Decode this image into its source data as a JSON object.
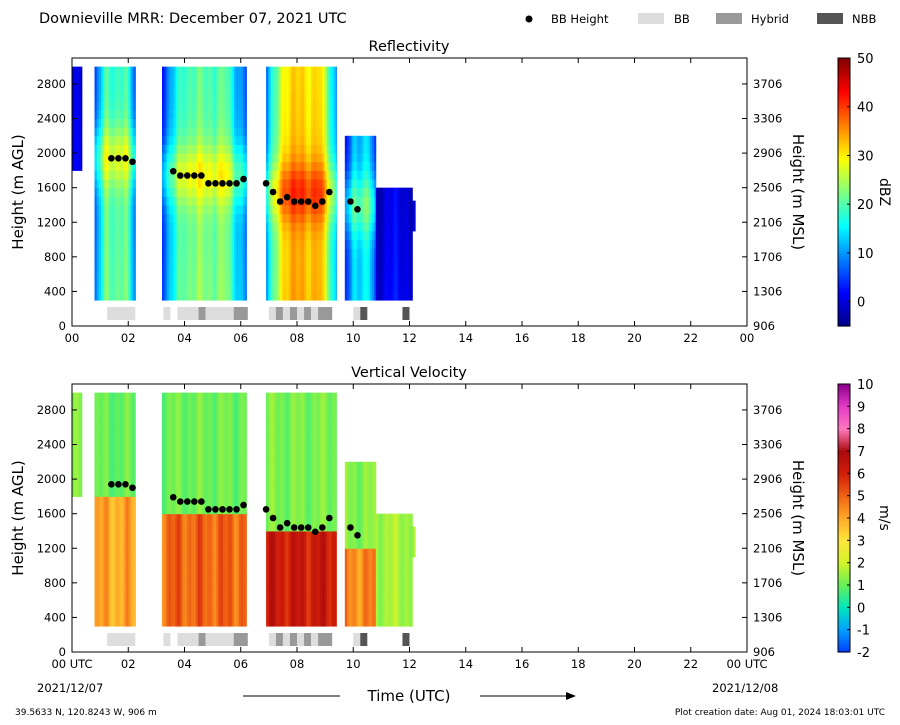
{
  "header": {
    "title": "Downieville MRR:  December 07, 2021 UTC",
    "legend": [
      {
        "label": "BB Height",
        "marker": "dot",
        "color": "#000000"
      },
      {
        "label": "BB",
        "marker": "box",
        "color": "#dddddd"
      },
      {
        "label": "Hybrid",
        "marker": "box",
        "color": "#999999"
      },
      {
        "label": "NBB",
        "marker": "box",
        "color": "#555555"
      }
    ]
  },
  "footer": {
    "location": "39.5633 N, 120.8243 W, 906 m",
    "creation": "Plot creation date: Aug 01, 2024 18:03:01 UTC",
    "date_left": "2021/12/07",
    "date_right": "2021/12/08",
    "xlabel": "Time (UTC)"
  },
  "chart_data": [
    {
      "type": "heatmap",
      "title": "Reflectivity",
      "ylabel": "Height (m AGL)",
      "ylabel_right": "Height (m MSL)",
      "xlim": [
        0,
        24
      ],
      "ylim": [
        0,
        3100
      ],
      "x_ticks": [
        "00",
        "02",
        "04",
        "06",
        "08",
        "10",
        "12",
        "14",
        "16",
        "18",
        "20",
        "22",
        "00"
      ],
      "y_ticks": [
        0,
        400,
        800,
        1200,
        1600,
        2000,
        2400,
        2800
      ],
      "y_ticks_right": [
        906,
        1306,
        1706,
        2106,
        2506,
        2906,
        3306,
        3706
      ],
      "colorbar": {
        "label": "dBZ",
        "min": -5,
        "max": 50,
        "ticks": [
          0,
          10,
          20,
          30,
          40,
          50
        ],
        "scale": "jet"
      },
      "echo_periods": [
        {
          "start": 0.0,
          "end": 0.35,
          "bottom": 1800,
          "top": 3000,
          "base": 2,
          "core": 0,
          "bbh": 0
        },
        {
          "start": 0.8,
          "end": 2.25,
          "bottom": 300,
          "top": 3000,
          "base": 8,
          "core": 14,
          "bbh": 1900
        },
        {
          "start": 3.2,
          "end": 6.2,
          "bottom": 300,
          "top": 3000,
          "base": 8,
          "core": 15,
          "bbh": 1700
        },
        {
          "start": 6.9,
          "end": 9.4,
          "bottom": 300,
          "top": 3000,
          "base": 12,
          "core": 22,
          "bbh": 1500
        },
        {
          "start": 9.7,
          "end": 10.8,
          "bottom": 300,
          "top": 2200,
          "base": 3,
          "core": 12,
          "bbh": 1350
        },
        {
          "start": 10.8,
          "end": 12.1,
          "bottom": 300,
          "top": 1600,
          "base": 0,
          "core": 2,
          "bbh": 0
        },
        {
          "start": 12.0,
          "end": 12.2,
          "bottom": 1100,
          "top": 1450,
          "base": 0,
          "core": 0,
          "bbh": 0
        }
      ],
      "bb_height": {
        "time": [
          1.4,
          1.65,
          1.9,
          2.15,
          3.6,
          3.85,
          4.1,
          4.35,
          4.6,
          4.85,
          5.1,
          5.35,
          5.6,
          5.85,
          6.1,
          6.9,
          7.15,
          7.4,
          7.65,
          7.9,
          8.15,
          8.4,
          8.65,
          8.9,
          9.15,
          9.9,
          10.15
        ],
        "height": [
          1940,
          1940,
          1940,
          1900,
          1790,
          1740,
          1740,
          1740,
          1740,
          1650,
          1650,
          1650,
          1650,
          1650,
          1700,
          1650,
          1550,
          1440,
          1490,
          1440,
          1440,
          1440,
          1390,
          1440,
          1550,
          1440,
          1350
        ]
      },
      "bb_type": [
        {
          "start": 1.25,
          "end": 2.25,
          "type": "BB"
        },
        {
          "start": 3.25,
          "end": 3.5,
          "type": "BB"
        },
        {
          "start": 3.75,
          "end": 4.5,
          "type": "BB"
        },
        {
          "start": 4.5,
          "end": 4.75,
          "type": "Hybrid"
        },
        {
          "start": 4.75,
          "end": 5.75,
          "type": "BB"
        },
        {
          "start": 5.75,
          "end": 6.25,
          "type": "Hybrid"
        },
        {
          "start": 7.0,
          "end": 7.25,
          "type": "BB"
        },
        {
          "start": 7.25,
          "end": 7.5,
          "type": "Hybrid"
        },
        {
          "start": 7.5,
          "end": 7.75,
          "type": "BB"
        },
        {
          "start": 7.75,
          "end": 8.0,
          "type": "Hybrid"
        },
        {
          "start": 8.0,
          "end": 8.25,
          "type": "BB"
        },
        {
          "start": 8.25,
          "end": 8.5,
          "type": "Hybrid"
        },
        {
          "start": 8.5,
          "end": 8.75,
          "type": "BB"
        },
        {
          "start": 8.75,
          "end": 9.25,
          "type": "Hybrid"
        },
        {
          "start": 10.0,
          "end": 10.25,
          "type": "BB"
        },
        {
          "start": 10.25,
          "end": 10.5,
          "type": "NBB"
        },
        {
          "start": 11.75,
          "end": 12.0,
          "type": "NBB"
        }
      ]
    },
    {
      "type": "heatmap",
      "title": "Vertical Velocity",
      "ylabel": "Height (m AGL)",
      "ylabel_right": "Height (m MSL)",
      "xlim": [
        0,
        24
      ],
      "ylim": [
        0,
        3100
      ],
      "x_ticks": [
        "00 UTC",
        "02",
        "04",
        "06",
        "08",
        "10",
        "12",
        "14",
        "16",
        "18",
        "20",
        "22",
        "00 UTC"
      ],
      "y_ticks": [
        0,
        400,
        800,
        1200,
        1600,
        2000,
        2400,
        2800
      ],
      "y_ticks_right": [
        906,
        1306,
        1706,
        2106,
        2506,
        2906,
        3306,
        3706
      ],
      "colorbar": {
        "label": "m/s",
        "min": -2,
        "max": 10,
        "ticks": [
          -2,
          -1,
          0,
          1,
          2,
          3,
          4,
          5,
          6,
          7,
          8,
          9,
          10
        ],
        "scale": "velocity"
      },
      "echo_periods": [
        {
          "start": 0.0,
          "end": 0.35,
          "bottom": 1800,
          "top": 3000,
          "below": 3.5,
          "above": 1.2
        },
        {
          "start": 0.8,
          "end": 2.25,
          "bottom": 300,
          "top": 3000,
          "below": 4.0,
          "above": 1.0
        },
        {
          "start": 3.2,
          "end": 6.2,
          "bottom": 300,
          "top": 3000,
          "below": 5.0,
          "above": 1.1
        },
        {
          "start": 6.9,
          "end": 9.4,
          "bottom": 300,
          "top": 3000,
          "below": 6.2,
          "above": 1.2
        },
        {
          "start": 9.7,
          "end": 10.8,
          "bottom": 300,
          "top": 2200,
          "below": 4.5,
          "above": 1.3
        },
        {
          "start": 10.8,
          "end": 12.1,
          "bottom": 300,
          "top": 1600,
          "below": 1.6,
          "above": 1.6
        },
        {
          "start": 12.0,
          "end": 12.2,
          "bottom": 1100,
          "top": 1450,
          "below": 1.5,
          "above": 1.5
        }
      ],
      "bb_height": {
        "time": [
          1.4,
          1.65,
          1.9,
          2.15,
          3.6,
          3.85,
          4.1,
          4.35,
          4.6,
          4.85,
          5.1,
          5.35,
          5.6,
          5.85,
          6.1,
          6.9,
          7.15,
          7.4,
          7.65,
          7.9,
          8.15,
          8.4,
          8.65,
          8.9,
          9.15,
          9.9,
          10.15
        ],
        "height": [
          1940,
          1940,
          1940,
          1900,
          1790,
          1740,
          1740,
          1740,
          1740,
          1650,
          1650,
          1650,
          1650,
          1650,
          1700,
          1650,
          1550,
          1440,
          1490,
          1440,
          1440,
          1440,
          1390,
          1440,
          1550,
          1440,
          1350
        ]
      },
      "bb_type": [
        {
          "start": 1.25,
          "end": 2.25,
          "type": "BB"
        },
        {
          "start": 3.25,
          "end": 3.5,
          "type": "BB"
        },
        {
          "start": 3.75,
          "end": 4.5,
          "type": "BB"
        },
        {
          "start": 4.5,
          "end": 4.75,
          "type": "Hybrid"
        },
        {
          "start": 4.75,
          "end": 5.75,
          "type": "BB"
        },
        {
          "start": 5.75,
          "end": 6.25,
          "type": "Hybrid"
        },
        {
          "start": 7.0,
          "end": 7.25,
          "type": "BB"
        },
        {
          "start": 7.25,
          "end": 7.5,
          "type": "Hybrid"
        },
        {
          "start": 7.5,
          "end": 7.75,
          "type": "BB"
        },
        {
          "start": 7.75,
          "end": 8.0,
          "type": "Hybrid"
        },
        {
          "start": 8.0,
          "end": 8.25,
          "type": "BB"
        },
        {
          "start": 8.25,
          "end": 8.5,
          "type": "Hybrid"
        },
        {
          "start": 8.5,
          "end": 8.75,
          "type": "BB"
        },
        {
          "start": 8.75,
          "end": 9.25,
          "type": "Hybrid"
        },
        {
          "start": 10.0,
          "end": 10.25,
          "type": "BB"
        },
        {
          "start": 10.25,
          "end": 10.5,
          "type": "NBB"
        },
        {
          "start": 11.75,
          "end": 12.0,
          "type": "NBB"
        }
      ]
    }
  ]
}
